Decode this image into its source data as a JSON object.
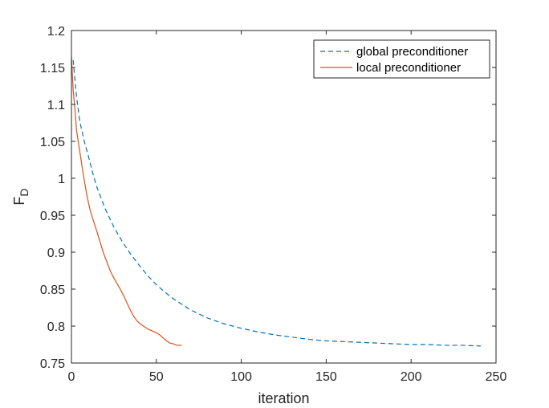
{
  "chart_data": {
    "type": "line",
    "xlabel": "iteration",
    "ylabel": {
      "main": "F",
      "sub": "D"
    },
    "xlim": [
      0,
      250
    ],
    "ylim": [
      0.75,
      1.2
    ],
    "xticks": [
      0,
      50,
      100,
      150,
      200,
      250
    ],
    "yticks": [
      0.75,
      0.8,
      0.85,
      0.9,
      0.95,
      1,
      1.05,
      1.1,
      1.15,
      1.2
    ],
    "xtick_labels": [
      "0",
      "50",
      "100",
      "150",
      "200",
      "250"
    ],
    "ytick_labels": [
      "0.75",
      "0.8",
      "0.85",
      "0.9",
      "0.95",
      "1",
      "1.05",
      "1.1",
      "1.15",
      "1.2"
    ],
    "grid": false,
    "legend_position": "top-right",
    "series": [
      {
        "name": "global preconditioner",
        "color": "#0072BD",
        "dash": "dashed",
        "points": [
          [
            1,
            1.16
          ],
          [
            3,
            1.11
          ],
          [
            5,
            1.076
          ],
          [
            8,
            1.046
          ],
          [
            10,
            1.03
          ],
          [
            13,
            1.003
          ],
          [
            15,
            0.988
          ],
          [
            20,
            0.958
          ],
          [
            25,
            0.934
          ],
          [
            30,
            0.914
          ],
          [
            35,
            0.897
          ],
          [
            40,
            0.882
          ],
          [
            45,
            0.868
          ],
          [
            50,
            0.856
          ],
          [
            55,
            0.846
          ],
          [
            60,
            0.837
          ],
          [
            70,
            0.822
          ],
          [
            80,
            0.811
          ],
          [
            90,
            0.803
          ],
          [
            100,
            0.797
          ],
          [
            110,
            0.792
          ],
          [
            120,
            0.788
          ],
          [
            130,
            0.785
          ],
          [
            140,
            0.782
          ],
          [
            150,
            0.78
          ],
          [
            160,
            0.779
          ],
          [
            170,
            0.778
          ],
          [
            180,
            0.777
          ],
          [
            190,
            0.776
          ],
          [
            200,
            0.775
          ],
          [
            210,
            0.775
          ],
          [
            220,
            0.774
          ],
          [
            230,
            0.774
          ],
          [
            241,
            0.773
          ]
        ]
      },
      {
        "name": "local preconditioner",
        "color": "#D95319",
        "dash": "solid",
        "points": [
          [
            0,
            1.165
          ],
          [
            1,
            1.12
          ],
          [
            2,
            1.095
          ],
          [
            3,
            1.065
          ],
          [
            5,
            1.035
          ],
          [
            7,
            1.005
          ],
          [
            9,
            0.978
          ],
          [
            11,
            0.957
          ],
          [
            13,
            0.942
          ],
          [
            15,
            0.928
          ],
          [
            17,
            0.913
          ],
          [
            19,
            0.898
          ],
          [
            21,
            0.886
          ],
          [
            23,
            0.874
          ],
          [
            25,
            0.865
          ],
          [
            27,
            0.857
          ],
          [
            29,
            0.849
          ],
          [
            31,
            0.84
          ],
          [
            33,
            0.83
          ],
          [
            35,
            0.82
          ],
          [
            37,
            0.812
          ],
          [
            39,
            0.806
          ],
          [
            41,
            0.802
          ],
          [
            43,
            0.799
          ],
          [
            45,
            0.796
          ],
          [
            48,
            0.793
          ],
          [
            50,
            0.791
          ],
          [
            52,
            0.788
          ],
          [
            54,
            0.784
          ],
          [
            56,
            0.78
          ],
          [
            58,
            0.777
          ],
          [
            60,
            0.776
          ],
          [
            62,
            0.774
          ],
          [
            64,
            0.774
          ],
          [
            65,
            0.774
          ]
        ]
      }
    ]
  }
}
